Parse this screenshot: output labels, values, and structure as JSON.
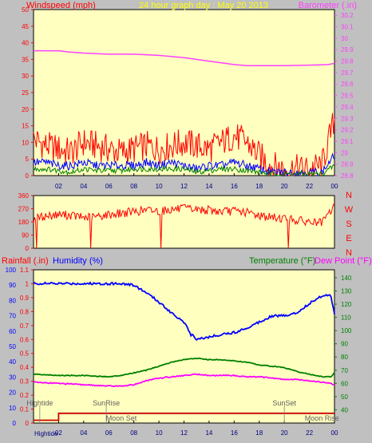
{
  "header": {
    "left_label": "Windspeed (mph)",
    "title": "24 hour graph day : May 20 2013",
    "right_label": "Barometer (.in)"
  },
  "compass": [
    "N",
    "W",
    "S",
    "E",
    "N"
  ],
  "bottom_header": {
    "rainfall": "Rainfall (.in)",
    "humidity": "Humidity (%)",
    "temperature": "Temperature (°F)",
    "dewpoint": "Dew Point (°F)"
  },
  "colors": {
    "background": "#c0c0c0",
    "plot_bg": "#ffffc0",
    "windspeed": "#ff0000",
    "barometer": "#ff40ff",
    "humidity": "#0000ff",
    "temperature": "#008000",
    "dewpoint": "#ff00ff",
    "rainfall": "#cc0000",
    "title": "#ffff00"
  },
  "chart_data": [
    {
      "type": "line",
      "name": "wind-barometer",
      "x_ticks": [
        "02",
        "04",
        "06",
        "08",
        "10",
        "12",
        "14",
        "16",
        "18",
        "20",
        "22",
        "00"
      ],
      "left_axis": {
        "label": "Windspeed (mph)",
        "ticks": [
          0,
          5,
          10,
          15,
          20,
          25,
          30,
          35,
          40,
          45,
          50
        ],
        "ylim": [
          0,
          50
        ]
      },
      "right_axis": {
        "label": "Barometer (.in)",
        "ticks": [
          "28.8",
          "28.9",
          "29",
          "29.1",
          "29.2",
          "29.3",
          "29.4",
          "29.5",
          "29.6",
          "29.7",
          "29.8",
          "29.9",
          "30",
          "30.1",
          "30.2"
        ],
        "ylim": [
          28.8,
          30.25
        ]
      },
      "series": [
        {
          "key": "gust",
          "color": "#ff0000",
          "axis": "left",
          "x": [
            0,
            1,
            2,
            3,
            4,
            5,
            6,
            7,
            8,
            9,
            10,
            11,
            12,
            13,
            14,
            15,
            16,
            17,
            18,
            19,
            20,
            21,
            22,
            23,
            24
          ],
          "y": [
            11,
            9,
            8,
            7,
            10,
            9,
            8,
            7,
            8,
            9,
            8,
            9,
            10,
            9,
            8,
            10,
            12,
            10,
            6,
            3,
            2,
            2,
            2,
            3,
            17
          ]
        },
        {
          "key": "avg",
          "color": "#0000ff",
          "axis": "left",
          "x": [
            0,
            1,
            2,
            3,
            4,
            5,
            6,
            7,
            8,
            9,
            10,
            11,
            12,
            13,
            14,
            15,
            16,
            17,
            18,
            19,
            20,
            21,
            22,
            23,
            24
          ],
          "y": [
            4,
            4,
            3,
            3,
            4,
            3,
            3,
            3,
            3,
            4,
            3,
            4,
            3,
            2,
            3,
            3,
            4,
            3,
            2,
            1,
            1,
            1,
            1,
            1,
            6
          ]
        },
        {
          "key": "low",
          "color": "#008000",
          "axis": "left",
          "x": [
            0,
            1,
            2,
            3,
            4,
            5,
            6,
            7,
            8,
            9,
            10,
            11,
            12,
            13,
            14,
            15,
            16,
            17,
            18,
            19,
            20,
            21,
            22,
            23,
            24
          ],
          "y": [
            2,
            2,
            1.5,
            1,
            2,
            1.5,
            1.5,
            1.5,
            2,
            2,
            2,
            2,
            2,
            1,
            1.5,
            2,
            2,
            1.5,
            1,
            0.5,
            0.5,
            0.5,
            0.5,
            0.5,
            3
          ]
        },
        {
          "key": "barometer",
          "color": "#ff40ff",
          "axis": "right",
          "x": [
            0,
            2,
            2.8,
            4,
            6,
            8,
            10,
            12,
            14,
            16,
            17,
            18,
            20,
            22,
            23.5,
            24
          ],
          "y": [
            29.89,
            29.89,
            29.88,
            29.87,
            29.86,
            29.86,
            29.85,
            29.83,
            29.8,
            29.77,
            29.76,
            29.76,
            29.76,
            29.765,
            29.77,
            29.78
          ]
        }
      ]
    },
    {
      "type": "scatter",
      "name": "wind-direction",
      "left_axis": {
        "ticks": [
          0,
          90,
          180,
          270,
          360
        ],
        "ylim": [
          0,
          360
        ]
      },
      "x": [
        0,
        1,
        2,
        3,
        4,
        5,
        6,
        7,
        8,
        9,
        10,
        11,
        12,
        13,
        14,
        15,
        16,
        17,
        18,
        19,
        20,
        21,
        22,
        23,
        24
      ],
      "y": [
        200,
        220,
        230,
        225,
        210,
        215,
        230,
        240,
        250,
        260,
        255,
        265,
        270,
        265,
        260,
        250,
        255,
        245,
        225,
        210,
        205,
        190,
        180,
        170,
        290
      ]
    },
    {
      "type": "line",
      "name": "humidity-temp",
      "x_ticks": [
        "02",
        "04",
        "06",
        "08",
        "10",
        "12",
        "14",
        "16",
        "18",
        "20",
        "22",
        "00"
      ],
      "left_axis_rain": {
        "label": "Rainfall (.in)",
        "ticks": [
          0,
          0.1,
          0.2,
          0.3,
          0.4,
          0.5,
          0.6,
          0.7,
          0.8,
          0.9,
          1,
          1.1
        ],
        "ylim": [
          0,
          1.1
        ]
      },
      "left_axis_humidity": {
        "label": "Humidity (%)",
        "ticks": [
          0,
          10,
          20,
          30,
          40,
          50,
          60,
          70,
          80,
          90,
          100
        ],
        "ylim": [
          0,
          100
        ]
      },
      "right_axis": {
        "label": "Temperature (°F)",
        "ticks": [
          40,
          50,
          60,
          70,
          80,
          90,
          100,
          110,
          120,
          130,
          140
        ],
        "ylim": [
          30,
          146
        ]
      },
      "annotations": [
        {
          "text": "Hightide",
          "x": 0.5,
          "row": "top"
        },
        {
          "text": "SunRise",
          "x": 5.8,
          "row": "top"
        },
        {
          "text": "Moon Set",
          "x": 7.0,
          "row": "bottom"
        },
        {
          "text": "SunSet",
          "x": 20.0,
          "row": "top"
        },
        {
          "text": "Moon Rise",
          "x": 23.0,
          "row": "bottom"
        },
        {
          "text": "Hightide",
          "x": 1.0,
          "row": "axis"
        }
      ],
      "series": [
        {
          "key": "humidity",
          "color": "#0000ff",
          "axis": "humidity",
          "x": [
            0,
            2,
            4,
            6,
            7,
            8,
            9,
            10,
            11,
            12,
            12.5,
            13,
            14,
            15,
            16,
            17,
            18,
            19,
            20,
            21,
            22,
            23,
            23.7,
            24
          ],
          "y": [
            91,
            91,
            91,
            91,
            91,
            90,
            85,
            79,
            72,
            66,
            58,
            55,
            56,
            58,
            59,
            62,
            66,
            70,
            70,
            72,
            78,
            83,
            84,
            71
          ]
        },
        {
          "key": "temperature",
          "color": "#008000",
          "axis": "right",
          "x": [
            0,
            2,
            4,
            6,
            7,
            8,
            9,
            10,
            11,
            12,
            13,
            14,
            15,
            16,
            17,
            18,
            19,
            20,
            21,
            22,
            23,
            23.7,
            24
          ],
          "y": [
            67,
            66,
            66,
            65,
            66,
            68,
            70,
            73,
            76,
            78,
            79,
            78,
            78,
            77,
            76,
            74,
            73,
            72,
            69,
            67,
            65,
            65,
            68
          ]
        },
        {
          "key": "dewpoint",
          "color": "#ff00ff",
          "axis": "right",
          "x": [
            0,
            2,
            4,
            6,
            7,
            8,
            9,
            10,
            11,
            12,
            13,
            14,
            15,
            16,
            17,
            18,
            19,
            20,
            21,
            22,
            23,
            23.7,
            24
          ],
          "y": [
            61,
            60,
            59,
            58,
            58,
            59,
            62,
            64,
            65,
            66,
            67,
            66,
            66,
            66,
            65,
            65,
            64,
            63,
            63,
            62,
            61,
            60,
            59
          ]
        },
        {
          "key": "rainfall",
          "color": "#cc0000",
          "axis": "rain",
          "x": [
            0,
            2,
            2,
            24
          ],
          "y": [
            0.02,
            0.02,
            0.07,
            0.07
          ]
        }
      ]
    }
  ]
}
